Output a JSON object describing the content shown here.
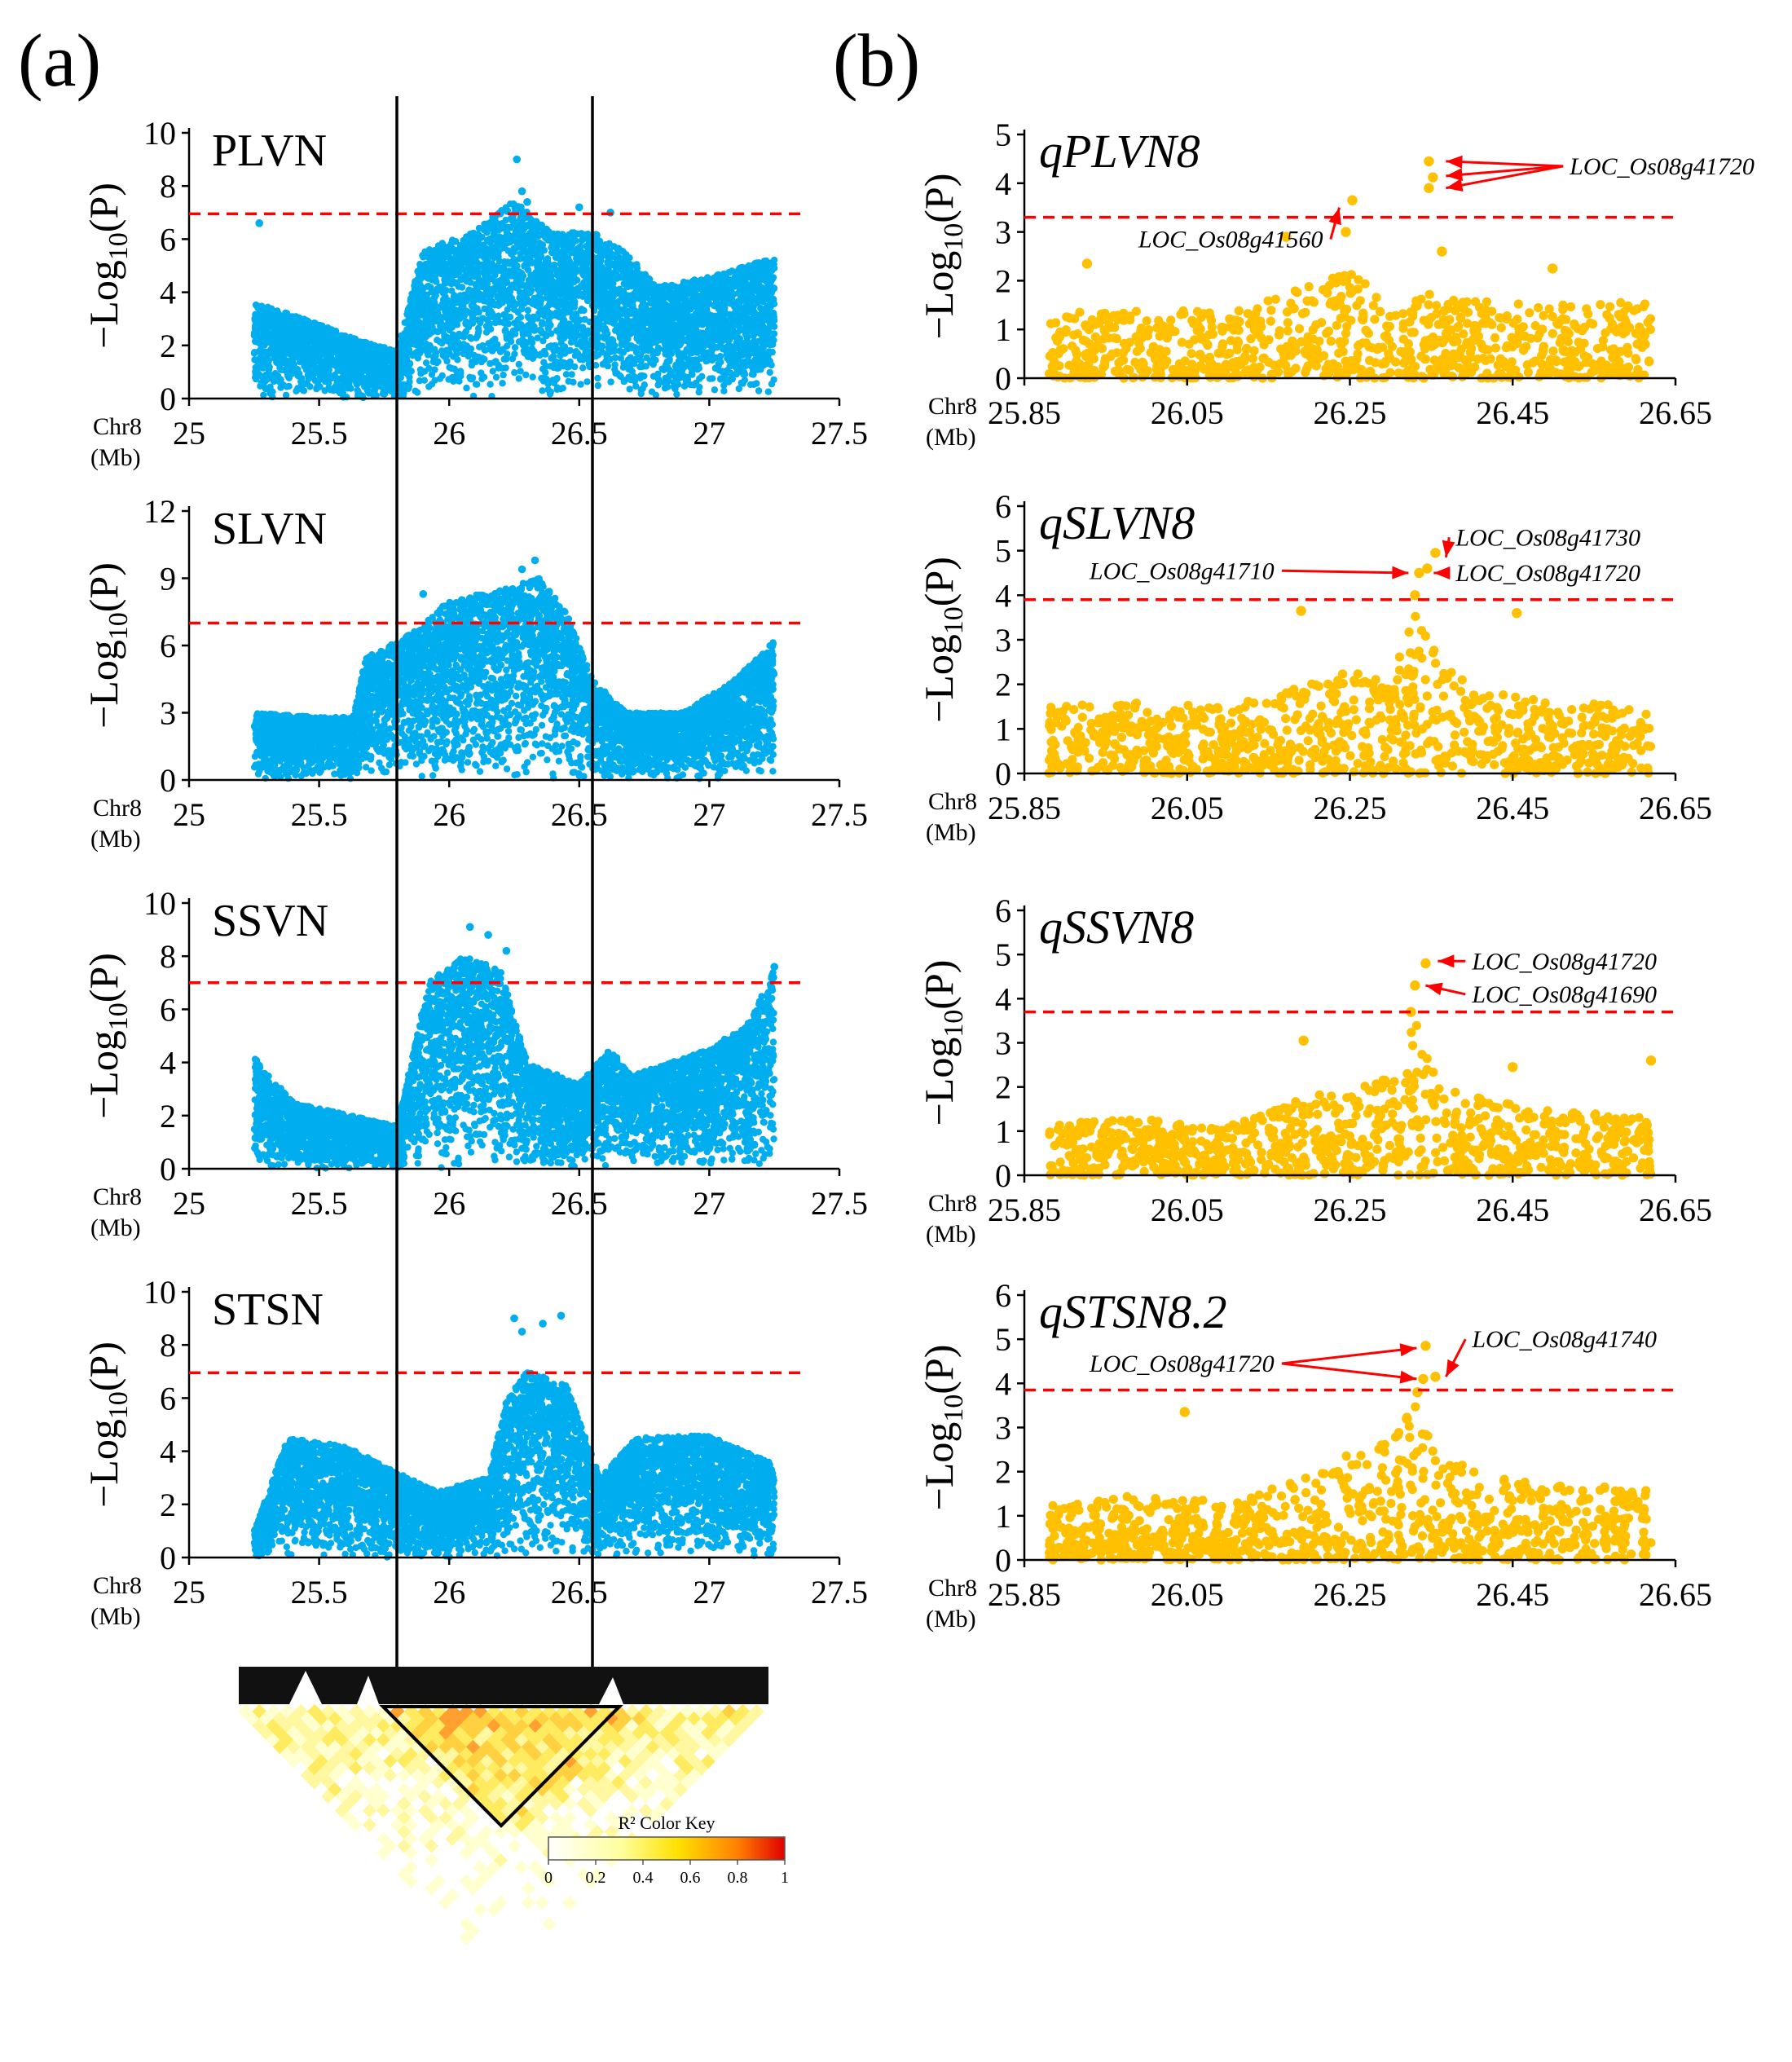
{
  "panel_labels": {
    "a": "(a)",
    "b": "(b)"
  },
  "y_axis_label": {
    "prefix": "−Log",
    "sub": "10",
    "suffix": "(P)"
  },
  "x_axis_caption": {
    "line1": "Chr8",
    "line2": "(Mb)"
  },
  "colors": {
    "left_points": "#00AEEF",
    "right_points": "#FFC000",
    "threshold": "#FF0000",
    "annotation": "#FF0000"
  },
  "ld_heatmap": {
    "legend_title": "R² Color Key",
    "legend_ticks": [
      "0",
      "0.2",
      "0.4",
      "0.6",
      "0.8",
      "1"
    ]
  },
  "chart_data": [
    {
      "type": "scatter",
      "panel": "a",
      "title": "PLVN",
      "xlim": [
        25,
        27.5
      ],
      "xticks": [
        "25",
        "25.5",
        "26",
        "26.5",
        "27",
        "27.5"
      ],
      "xtick_values": [
        25,
        25.5,
        26,
        26.5,
        27,
        27.5
      ],
      "ylim": [
        0,
        10
      ],
      "yticks": [
        "0",
        "2",
        "4",
        "6",
        "8",
        "10"
      ],
      "ytick_values": [
        0,
        2,
        4,
        6,
        8,
        10
      ],
      "threshold": 6.95,
      "data_range": [
        25.25,
        27.25
      ],
      "profile": [
        [
          25.25,
          3.6
        ],
        [
          25.45,
          3.0
        ],
        [
          25.65,
          2.2
        ],
        [
          25.8,
          1.8
        ],
        [
          25.9,
          5.6
        ],
        [
          26.1,
          6.3
        ],
        [
          26.25,
          7.5
        ],
        [
          26.4,
          6.2
        ],
        [
          26.55,
          6.3
        ],
        [
          26.68,
          5.5
        ],
        [
          26.8,
          4.2
        ],
        [
          27.0,
          4.6
        ],
        [
          27.25,
          5.3
        ]
      ],
      "peaks": [
        {
          "x": 25.27,
          "y": 6.6
        },
        {
          "x": 26.26,
          "y": 9.0
        },
        {
          "x": 26.28,
          "y": 7.8
        },
        {
          "x": 26.3,
          "y": 7.4
        },
        {
          "x": 26.5,
          "y": 7.2
        },
        {
          "x": 26.62,
          "y": 7.0
        }
      ]
    },
    {
      "type": "scatter",
      "panel": "a",
      "title": "SLVN",
      "xlim": [
        25,
        27.5
      ],
      "xticks": [
        "25",
        "25.5",
        "26",
        "26.5",
        "27",
        "27.5"
      ],
      "xtick_values": [
        25,
        25.5,
        26,
        26.5,
        27,
        27.5
      ],
      "ylim": [
        0,
        12
      ],
      "yticks": [
        "0",
        "3",
        "6",
        "9",
        "12"
      ],
      "ytick_values": [
        0,
        3,
        6,
        9,
        12
      ],
      "threshold": 7.0,
      "data_range": [
        25.25,
        27.25
      ],
      "profile": [
        [
          25.25,
          3.0
        ],
        [
          25.5,
          2.8
        ],
        [
          25.63,
          2.8
        ],
        [
          25.68,
          5.5
        ],
        [
          25.85,
          6.5
        ],
        [
          26.0,
          8.0
        ],
        [
          26.2,
          8.5
        ],
        [
          26.35,
          9.0
        ],
        [
          26.45,
          7.5
        ],
        [
          26.55,
          4.5
        ],
        [
          26.68,
          3.0
        ],
        [
          26.9,
          3.0
        ],
        [
          27.1,
          4.5
        ],
        [
          27.25,
          6.2
        ]
      ],
      "peaks": [
        {
          "x": 26.33,
          "y": 9.8
        },
        {
          "x": 26.28,
          "y": 9.4
        },
        {
          "x": 25.9,
          "y": 8.3
        },
        {
          "x": 26.4,
          "y": 8.0
        }
      ]
    },
    {
      "type": "scatter",
      "panel": "a",
      "title": "SSVN",
      "xlim": [
        25,
        27.5
      ],
      "xticks": [
        "25",
        "25.5",
        "26",
        "26.5",
        "27",
        "27.5"
      ],
      "xtick_values": [
        25,
        25.5,
        26,
        26.5,
        27,
        27.5
      ],
      "ylim": [
        0,
        10
      ],
      "yticks": [
        "0",
        "2",
        "4",
        "6",
        "8",
        "10"
      ],
      "ytick_values": [
        0,
        2,
        4,
        6,
        8,
        10
      ],
      "threshold": 7.0,
      "data_range": [
        25.25,
        27.25
      ],
      "profile": [
        [
          25.25,
          4.2
        ],
        [
          25.4,
          2.5
        ],
        [
          25.8,
          1.6
        ],
        [
          25.92,
          7.0
        ],
        [
          26.05,
          8.0
        ],
        [
          26.2,
          7.5
        ],
        [
          26.3,
          4.0
        ],
        [
          26.5,
          3.2
        ],
        [
          26.62,
          4.5
        ],
        [
          26.7,
          3.5
        ],
        [
          27.0,
          4.5
        ],
        [
          27.15,
          5.5
        ],
        [
          27.25,
          7.5
        ]
      ],
      "peaks": [
        {
          "x": 26.08,
          "y": 9.1
        },
        {
          "x": 26.15,
          "y": 8.8
        },
        {
          "x": 26.22,
          "y": 8.2
        },
        {
          "x": 27.25,
          "y": 7.6
        }
      ]
    },
    {
      "type": "scatter",
      "panel": "a",
      "title": "STSN",
      "xlim": [
        25,
        27.5
      ],
      "xticks": [
        "25",
        "25.5",
        "26",
        "26.5",
        "27",
        "27.5"
      ],
      "xtick_values": [
        25,
        25.5,
        26,
        26.5,
        27,
        27.5
      ],
      "ylim": [
        0,
        10
      ],
      "yticks": [
        "0",
        "2",
        "4",
        "6",
        "8",
        "10"
      ],
      "ytick_values": [
        0,
        2,
        4,
        6,
        8,
        10
      ],
      "threshold": 6.95,
      "data_range": [
        25.25,
        27.25
      ],
      "profile": [
        [
          25.25,
          1.0
        ],
        [
          25.38,
          4.5
        ],
        [
          25.6,
          4.2
        ],
        [
          25.8,
          3.2
        ],
        [
          25.95,
          2.5
        ],
        [
          26.15,
          3.0
        ],
        [
          26.22,
          6.0
        ],
        [
          26.3,
          7.0
        ],
        [
          26.45,
          6.5
        ],
        [
          26.58,
          3.0
        ],
        [
          26.72,
          4.5
        ],
        [
          27.0,
          4.6
        ],
        [
          27.25,
          3.5
        ]
      ],
      "peaks": [
        {
          "x": 26.25,
          "y": 9.0
        },
        {
          "x": 26.28,
          "y": 8.5
        },
        {
          "x": 26.43,
          "y": 9.1
        },
        {
          "x": 26.36,
          "y": 8.8
        }
      ]
    },
    {
      "type": "scatter",
      "panel": "b",
      "title": "qPLVN8",
      "xlim": [
        25.85,
        26.65
      ],
      "xticks": [
        "25.85",
        "26.05",
        "26.25",
        "26.45",
        "26.65"
      ],
      "xtick_values": [
        25.85,
        26.05,
        26.25,
        26.45,
        26.65
      ],
      "ylim": [
        0,
        5
      ],
      "yticks": [
        "0",
        "1",
        "2",
        "3",
        "4",
        "5"
      ],
      "ytick_values": [
        0,
        1,
        2,
        3,
        4,
        5
      ],
      "threshold": 3.3,
      "data_range": [
        25.88,
        26.62
      ],
      "profile": [
        [
          25.88,
          1.3
        ],
        [
          26.0,
          1.5
        ],
        [
          26.1,
          1.3
        ],
        [
          26.2,
          1.9
        ],
        [
          26.25,
          2.2
        ],
        [
          26.3,
          1.5
        ],
        [
          26.35,
          1.8
        ],
        [
          26.4,
          1.6
        ],
        [
          26.5,
          1.5
        ],
        [
          26.62,
          1.6
        ]
      ],
      "peaks": [
        {
          "x": 26.347,
          "y": 4.45
        },
        {
          "x": 26.352,
          "y": 4.12
        },
        {
          "x": 26.347,
          "y": 3.9
        },
        {
          "x": 26.253,
          "y": 3.65
        },
        {
          "x": 26.172,
          "y": 2.9
        },
        {
          "x": 26.245,
          "y": 3.0
        },
        {
          "x": 25.927,
          "y": 2.35
        },
        {
          "x": 26.499,
          "y": 2.25
        },
        {
          "x": 26.363,
          "y": 2.6
        }
      ],
      "annotations": [
        {
          "label": "LOC_Os08g41720",
          "targets": [
            {
              "x": 26.36,
              "y": 4.45
            },
            {
              "x": 26.36,
              "y": 4.15
            },
            {
              "x": 26.36,
              "y": 3.9
            }
          ],
          "label_x": 26.52,
          "label_y": 4.35
        },
        {
          "label": "LOC_Os08g41560",
          "targets": [
            {
              "x": 26.245,
              "y": 3.5
            }
          ],
          "label_x": 25.99,
          "label_y": 2.85
        }
      ]
    },
    {
      "type": "scatter",
      "panel": "b",
      "title": "qSLVN8",
      "xlim": [
        25.85,
        26.65
      ],
      "xticks": [
        "25.85",
        "26.05",
        "26.25",
        "26.45",
        "26.65"
      ],
      "xtick_values": [
        25.85,
        26.05,
        26.25,
        26.45,
        26.65
      ],
      "ylim": [
        0,
        6
      ],
      "yticks": [
        "0",
        "1",
        "2",
        "3",
        "4",
        "5",
        "6"
      ],
      "ytick_values": [
        0,
        1,
        2,
        3,
        4,
        5,
        6
      ],
      "threshold": 3.9,
      "data_range": [
        25.88,
        26.62
      ],
      "profile": [
        [
          25.88,
          1.5
        ],
        [
          26.0,
          1.6
        ],
        [
          26.1,
          1.5
        ],
        [
          26.2,
          2.0
        ],
        [
          26.25,
          2.3
        ],
        [
          26.3,
          2.0
        ],
        [
          26.33,
          3.8
        ],
        [
          26.35,
          3.0
        ],
        [
          26.4,
          1.9
        ],
        [
          26.5,
          1.6
        ],
        [
          26.62,
          1.5
        ]
      ],
      "peaks": [
        {
          "x": 26.355,
          "y": 4.95
        },
        {
          "x": 26.345,
          "y": 4.6
        },
        {
          "x": 26.335,
          "y": 4.5
        },
        {
          "x": 26.33,
          "y": 4.0
        },
        {
          "x": 26.19,
          "y": 3.65
        },
        {
          "x": 26.455,
          "y": 3.6
        }
      ],
      "annotations": [
        {
          "label": "LOC_Os08g41730",
          "targets": [
            {
              "x": 26.36,
              "y": 4.85
            }
          ],
          "label_x": 26.38,
          "label_y": 5.3
        },
        {
          "label": "LOC_Os08g41710",
          "targets": [
            {
              "x": 26.33,
              "y": 4.5
            }
          ],
          "label_x": 25.93,
          "label_y": 4.55
        },
        {
          "label": "LOC_Os08g41720",
          "targets": [
            {
              "x": 26.345,
              "y": 4.5
            }
          ],
          "label_x": 26.38,
          "label_y": 4.5
        }
      ]
    },
    {
      "type": "scatter",
      "panel": "b",
      "title": "qSSVN8",
      "xlim": [
        25.85,
        26.65
      ],
      "xticks": [
        "25.85",
        "26.05",
        "26.25",
        "26.45",
        "26.65"
      ],
      "xtick_values": [
        25.85,
        26.05,
        26.25,
        26.45,
        26.65
      ],
      "ylim": [
        0,
        6
      ],
      "yticks": [
        "0",
        "1",
        "2",
        "3",
        "4",
        "5",
        "6"
      ],
      "ytick_values": [
        0,
        1,
        2,
        3,
        4,
        5,
        6
      ],
      "threshold": 3.7,
      "data_range": [
        25.88,
        26.62
      ],
      "profile": [
        [
          25.88,
          1.2
        ],
        [
          26.0,
          1.3
        ],
        [
          26.1,
          1.2
        ],
        [
          26.2,
          1.8
        ],
        [
          26.25,
          2.0
        ],
        [
          26.3,
          2.4
        ],
        [
          26.33,
          3.5
        ],
        [
          26.36,
          2.0
        ],
        [
          26.45,
          1.6
        ],
        [
          26.62,
          1.3
        ]
      ],
      "peaks": [
        {
          "x": 26.343,
          "y": 4.8
        },
        {
          "x": 26.33,
          "y": 4.3
        },
        {
          "x": 26.325,
          "y": 3.7
        },
        {
          "x": 26.193,
          "y": 3.05
        },
        {
          "x": 26.62,
          "y": 2.6
        },
        {
          "x": 26.45,
          "y": 2.45
        }
      ],
      "annotations": [
        {
          "label": "LOC_Os08g41720",
          "targets": [
            {
              "x": 26.35,
              "y": 4.85
            }
          ],
          "label_x": 26.4,
          "label_y": 4.85
        },
        {
          "label": "LOC_Os08g41690",
          "targets": [
            {
              "x": 26.335,
              "y": 4.3
            }
          ],
          "label_x": 26.4,
          "label_y": 4.1
        }
      ]
    },
    {
      "type": "scatter",
      "panel": "b",
      "title": "qSTSN8.2",
      "xlim": [
        25.85,
        26.65
      ],
      "xticks": [
        "25.85",
        "26.05",
        "26.25",
        "26.45",
        "26.65"
      ],
      "xtick_values": [
        25.85,
        26.05,
        26.25,
        26.45,
        26.65
      ],
      "ylim": [
        0,
        6
      ],
      "yticks": [
        "0",
        "1",
        "2",
        "3",
        "4",
        "5",
        "6"
      ],
      "ytick_values": [
        0,
        1,
        2,
        3,
        4,
        5,
        6
      ],
      "threshold": 3.85,
      "data_range": [
        25.88,
        26.62
      ],
      "profile": [
        [
          25.88,
          1.3
        ],
        [
          26.0,
          1.5
        ],
        [
          26.1,
          1.3
        ],
        [
          26.2,
          1.9
        ],
        [
          26.25,
          2.4
        ],
        [
          26.3,
          2.7
        ],
        [
          26.33,
          3.6
        ],
        [
          26.36,
          2.4
        ],
        [
          26.45,
          1.8
        ],
        [
          26.62,
          1.6
        ]
      ],
      "peaks": [
        {
          "x": 26.343,
          "y": 4.85
        },
        {
          "x": 26.34,
          "y": 4.1
        },
        {
          "x": 26.355,
          "y": 4.15
        },
        {
          "x": 26.333,
          "y": 3.8
        },
        {
          "x": 26.047,
          "y": 3.35
        },
        {
          "x": 26.32,
          "y": 3.2
        }
      ],
      "annotations": [
        {
          "label": "LOC_Os08g41720",
          "targets": [
            {
              "x": 26.34,
              "y": 4.8
            },
            {
              "x": 26.34,
              "y": 4.1
            }
          ],
          "label_x": 25.93,
          "label_y": 4.45
        },
        {
          "label": "LOC_Os08g41740",
          "targets": [
            {
              "x": 26.36,
              "y": 4.15
            }
          ],
          "label_x": 26.4,
          "label_y": 5.0
        }
      ]
    }
  ]
}
